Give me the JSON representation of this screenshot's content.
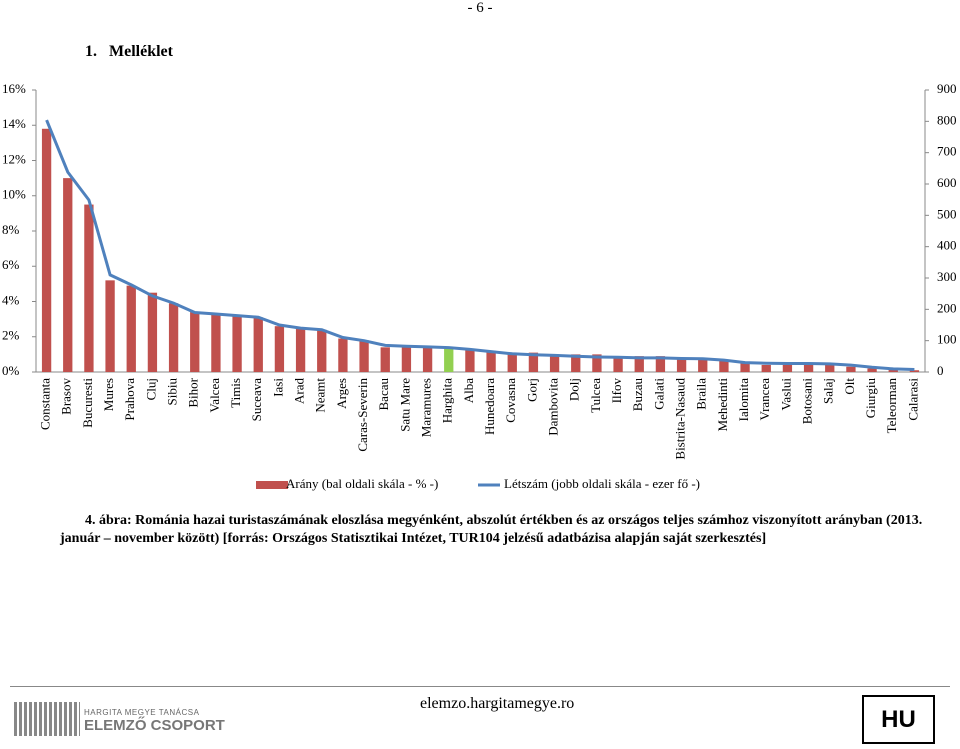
{
  "header": {
    "page_number": "- 6 -",
    "section": "1.   Melléklet"
  },
  "chart_data": {
    "type": "bar_line",
    "categories": [
      "Constanta",
      "Brasov",
      "Bucuresti",
      "Mures",
      "Prahova",
      "Cluj",
      "Sibiu",
      "Bihor",
      "Valcea",
      "Timis",
      "Suceava",
      "Iasi",
      "Arad",
      "Neamt",
      "Arges",
      "Caras-Severin",
      "Bacau",
      "Satu Mare",
      "Maramures",
      "Harghita",
      "Alba",
      "Hunedoara",
      "Covasna",
      "Gorj",
      "Dambovita",
      "Dolj",
      "Tulcea",
      "Ilfov",
      "Buzau",
      "Galati",
      "Bistrita-Nasaud",
      "Braila",
      "Mehedinti",
      "Ialomita",
      "Vrancea",
      "Vaslui",
      "Botosani",
      "Salaj",
      "Olt",
      "Giurgiu",
      "Teleorman",
      "Calarasi"
    ],
    "series": [
      {
        "name": "Arány (bal oldali skála - % -)",
        "type": "bar",
        "color": "#c0504d",
        "values": [
          13.8,
          11.0,
          9.5,
          5.2,
          4.9,
          4.5,
          3.9,
          3.4,
          3.3,
          3.2,
          3.1,
          2.6,
          2.5,
          2.4,
          1.9,
          1.8,
          1.4,
          1.4,
          1.4,
          1.4,
          1.3,
          1.2,
          1.1,
          1.1,
          1.0,
          1.0,
          1.0,
          0.9,
          0.9,
          0.9,
          0.8,
          0.8,
          0.7,
          0.5,
          0.4,
          0.4,
          0.4,
          0.4,
          0.3,
          0.2,
          0.2,
          0.1
        ]
      },
      {
        "name": "Létszám (jobb oldali skála - ezer fő -)",
        "type": "line",
        "axis": "y2",
        "color": "#4f81bd",
        "values": [
          804,
          638,
          549,
          310,
          278,
          243,
          220,
          190,
          185,
          180,
          175,
          150,
          140,
          135,
          110,
          100,
          85,
          82,
          80,
          78,
          72,
          65,
          58,
          55,
          53,
          50,
          48,
          47,
          45,
          45,
          43,
          42,
          38,
          30,
          28,
          27,
          27,
          26,
          22,
          15,
          10,
          8
        ]
      }
    ],
    "highlight_category": "Harghita",
    "highlight_color": "#92d050",
    "ylim": [
      0,
      16
    ],
    "yticks": [
      {
        "value": 0,
        "label": "0%"
      },
      {
        "value": 2,
        "label": "2%"
      },
      {
        "value": 4,
        "label": "4%"
      },
      {
        "value": 6,
        "label": "6%"
      },
      {
        "value": 8,
        "label": "8%"
      },
      {
        "value": 10,
        "label": "10%"
      },
      {
        "value": 12,
        "label": "12%"
      },
      {
        "value": 14,
        "label": "14%"
      },
      {
        "value": 16,
        "label": "16%"
      }
    ],
    "y2lim": [
      0,
      900
    ],
    "y2ticks": [
      0,
      100,
      200,
      300,
      400,
      500,
      600,
      700,
      800,
      900
    ],
    "grid": false
  },
  "caption": "4. ábra: Románia hazai turistaszámának eloszlása megyénként, abszolút értékben és az országos teljes számhoz viszonyított arányban (2013. január – november között) [forrás: Országos Statisztikai Intézet, TUR104 jelzésű adatbázisa alapján saját szerkesztés]",
  "footer": {
    "logo_top": "HARGITA MEGYE TANÁCSA",
    "logo_bottom": "ELEMZŐ CSOPORT",
    "website": "elemzo.hargitamegye.ro",
    "language": "HU"
  }
}
